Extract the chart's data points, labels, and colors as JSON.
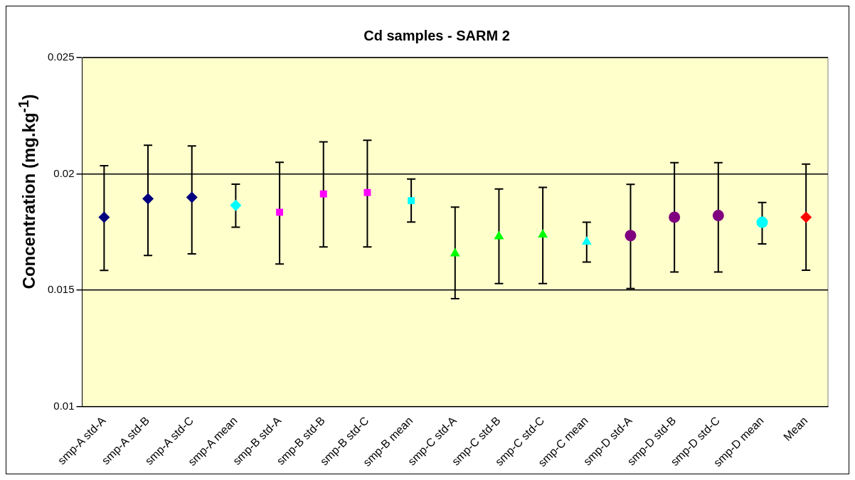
{
  "chart_data": {
    "type": "scatter",
    "title": "Cd samples - SARM 2",
    "ylabel": "Concentration (mg.kg$^{-1}$)",
    "categories": [
      "smp-A std-A",
      "smp-A std-B",
      "smp-A std-C",
      "smp-A mean",
      "smp-B std-A",
      "smp-B std-B",
      "smp-B std-C",
      "smp-B mean",
      "smp-C std-A",
      "smp-C std-B",
      "smp-C std-C",
      "smp-C mean",
      "smp-D std-A",
      "smp-D std-B",
      "smp-D std-C",
      "smp-D mean",
      "Mean"
    ],
    "series": [
      {
        "color": "#000080",
        "marker": "diamond",
        "values": [
          0.01814,
          0.01893,
          0.01899,
          null,
          null,
          null,
          null,
          null,
          null,
          null,
          null,
          null,
          null,
          null,
          null,
          null,
          null
        ],
        "errors": [
          [
            0.01585,
            0.02035
          ],
          [
            0.01649,
            0.02123
          ],
          [
            0.01656,
            0.0212
          ],
          null,
          null,
          null,
          null,
          null,
          null,
          null,
          null,
          null,
          null,
          null,
          null,
          null,
          null
        ]
      },
      {
        "color": "#00ffff",
        "marker": "diamond",
        "values": [
          null,
          null,
          null,
          0.01865,
          null,
          null,
          null,
          null,
          null,
          null,
          null,
          null,
          null,
          null,
          null,
          null,
          null
        ],
        "errors": [
          null,
          null,
          null,
          [
            0.01771,
            0.01956
          ],
          null,
          null,
          null,
          null,
          null,
          null,
          null,
          null,
          null,
          null,
          null,
          null,
          null
        ]
      },
      {
        "color": "#ff00ff",
        "marker": "square",
        "values": [
          null,
          null,
          null,
          null,
          0.01835,
          0.01914,
          0.0192,
          null,
          null,
          null,
          null,
          null,
          null,
          null,
          null,
          null,
          null
        ],
        "errors": [
          null,
          null,
          null,
          null,
          [
            0.01613,
            0.0205
          ],
          [
            0.01686,
            0.02138
          ],
          [
            0.01686,
            0.02145
          ],
          null,
          null,
          null,
          null,
          null,
          null,
          null,
          null,
          null,
          null
        ]
      },
      {
        "color": "#00ffff",
        "marker": "square",
        "values": [
          null,
          null,
          null,
          null,
          null,
          null,
          null,
          0.01885,
          null,
          null,
          null,
          null,
          null,
          null,
          null,
          null,
          null
        ],
        "errors": [
          null,
          null,
          null,
          null,
          null,
          null,
          null,
          [
            0.01793,
            0.01978
          ],
          null,
          null,
          null,
          null,
          null,
          null,
          null,
          null,
          null
        ]
      },
      {
        "color": "#00ff00",
        "marker": "triangle",
        "values": [
          null,
          null,
          null,
          null,
          null,
          null,
          null,
          null,
          0.01658,
          0.01731,
          0.01739,
          null,
          null,
          null,
          null,
          null,
          null
        ],
        "errors": [
          null,
          null,
          null,
          null,
          null,
          null,
          null,
          null,
          [
            0.01464,
            0.01857
          ],
          [
            0.01529,
            0.01935
          ],
          [
            0.01529,
            0.01942
          ],
          null,
          null,
          null,
          null,
          null,
          null
        ]
      },
      {
        "color": "#00ffff",
        "marker": "triangle",
        "values": [
          null,
          null,
          null,
          null,
          null,
          null,
          null,
          null,
          null,
          null,
          null,
          0.01708,
          null,
          null,
          null,
          null,
          null
        ],
        "errors": [
          null,
          null,
          null,
          null,
          null,
          null,
          null,
          null,
          null,
          null,
          null,
          [
            0.01621,
            0.01792
          ],
          null,
          null,
          null,
          null,
          null
        ]
      },
      {
        "color": "#800080",
        "marker": "circle",
        "values": [
          null,
          null,
          null,
          null,
          null,
          null,
          null,
          null,
          null,
          null,
          null,
          null,
          0.01735,
          0.01814,
          0.01821,
          null,
          null
        ],
        "errors": [
          null,
          null,
          null,
          null,
          null,
          null,
          null,
          null,
          null,
          null,
          null,
          null,
          [
            0.01507,
            0.01955
          ],
          [
            0.01578,
            0.02048
          ],
          [
            0.01578,
            0.02048
          ],
          null,
          null
        ]
      },
      {
        "color": "#00ffff",
        "marker": "circle",
        "values": [
          null,
          null,
          null,
          null,
          null,
          null,
          null,
          null,
          null,
          null,
          null,
          null,
          null,
          null,
          null,
          0.01792,
          null
        ],
        "errors": [
          null,
          null,
          null,
          null,
          null,
          null,
          null,
          null,
          null,
          null,
          null,
          null,
          null,
          null,
          null,
          [
            0.01699,
            0.01877
          ],
          null
        ]
      },
      {
        "color": "#ff0000",
        "marker": "diamond",
        "values": [
          null,
          null,
          null,
          null,
          null,
          null,
          null,
          null,
          null,
          null,
          null,
          null,
          null,
          null,
          null,
          null,
          0.01814
        ],
        "errors": [
          null,
          null,
          null,
          null,
          null,
          null,
          null,
          null,
          null,
          null,
          null,
          null,
          null,
          null,
          null,
          null,
          [
            0.01586,
            0.02042
          ]
        ]
      }
    ],
    "ylim": [
      0.01,
      0.025
    ],
    "yticks": [
      0.01,
      0.015,
      0.02,
      0.025
    ],
    "grid": "y",
    "legend": false
  }
}
